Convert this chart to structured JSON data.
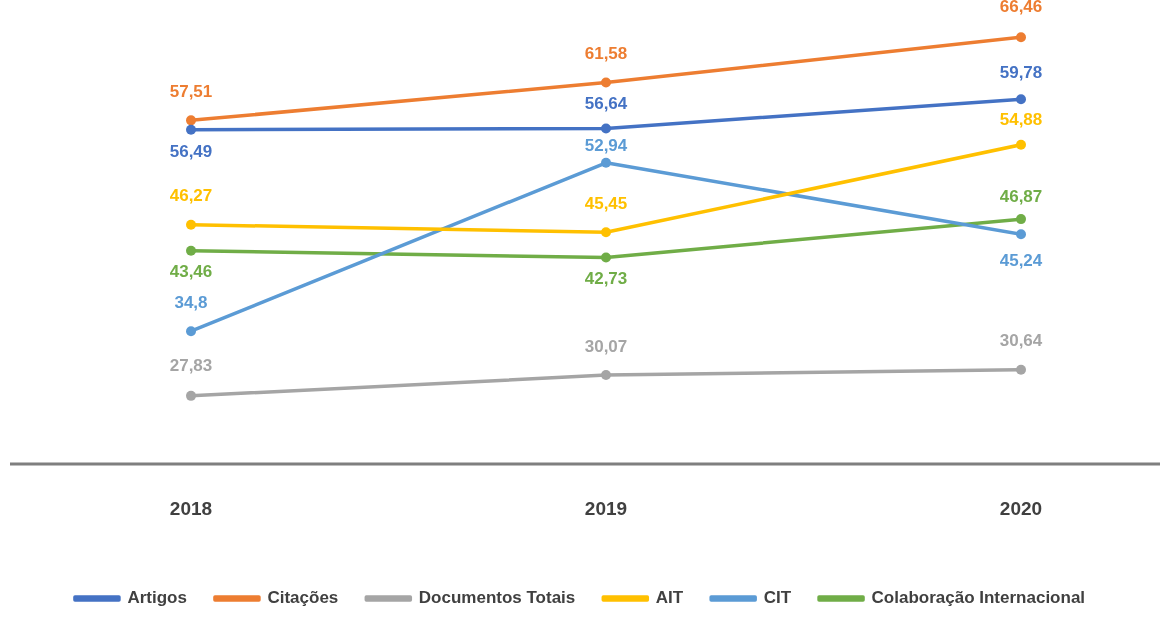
{
  "chart_data": {
    "type": "line",
    "categories": [
      "2018",
      "2019",
      "2020"
    ],
    "series": [
      {
        "name": "Artigos",
        "color": "#4472c4",
        "values": [
          56.49,
          56.64,
          59.78
        ],
        "value_labels": [
          "56,49",
          "56,64",
          "59,78"
        ]
      },
      {
        "name": "Citações",
        "color": "#ed7d31",
        "values": [
          57.51,
          61.58,
          66.46
        ],
        "value_labels": [
          "57,51",
          "61,58",
          "66,46"
        ]
      },
      {
        "name": "Documentos Totais",
        "color": "#a5a5a5",
        "values": [
          27.83,
          30.07,
          30.64
        ],
        "value_labels": [
          "27,83",
          "30,07",
          "30,64"
        ]
      },
      {
        "name": "AIT",
        "color": "#ffc000",
        "values": [
          46.27,
          45.45,
          54.88
        ],
        "value_labels": [
          "46,27",
          "45,45",
          "54,88"
        ]
      },
      {
        "name": "CIT",
        "color": "#5b9bd5",
        "values": [
          34.8,
          52.94,
          45.24
        ],
        "value_labels": [
          "34,8",
          "52,94",
          "45,24"
        ]
      },
      {
        "name": "Colaboração Internacional",
        "color": "#70ad47",
        "values": [
          43.46,
          42.73,
          46.87
        ],
        "value_labels": [
          "43,46",
          "42,73",
          "46,87"
        ]
      }
    ],
    "tick_labels": "x",
    "legend": "bottom",
    "marker": "circle",
    "line_style": "solid"
  }
}
